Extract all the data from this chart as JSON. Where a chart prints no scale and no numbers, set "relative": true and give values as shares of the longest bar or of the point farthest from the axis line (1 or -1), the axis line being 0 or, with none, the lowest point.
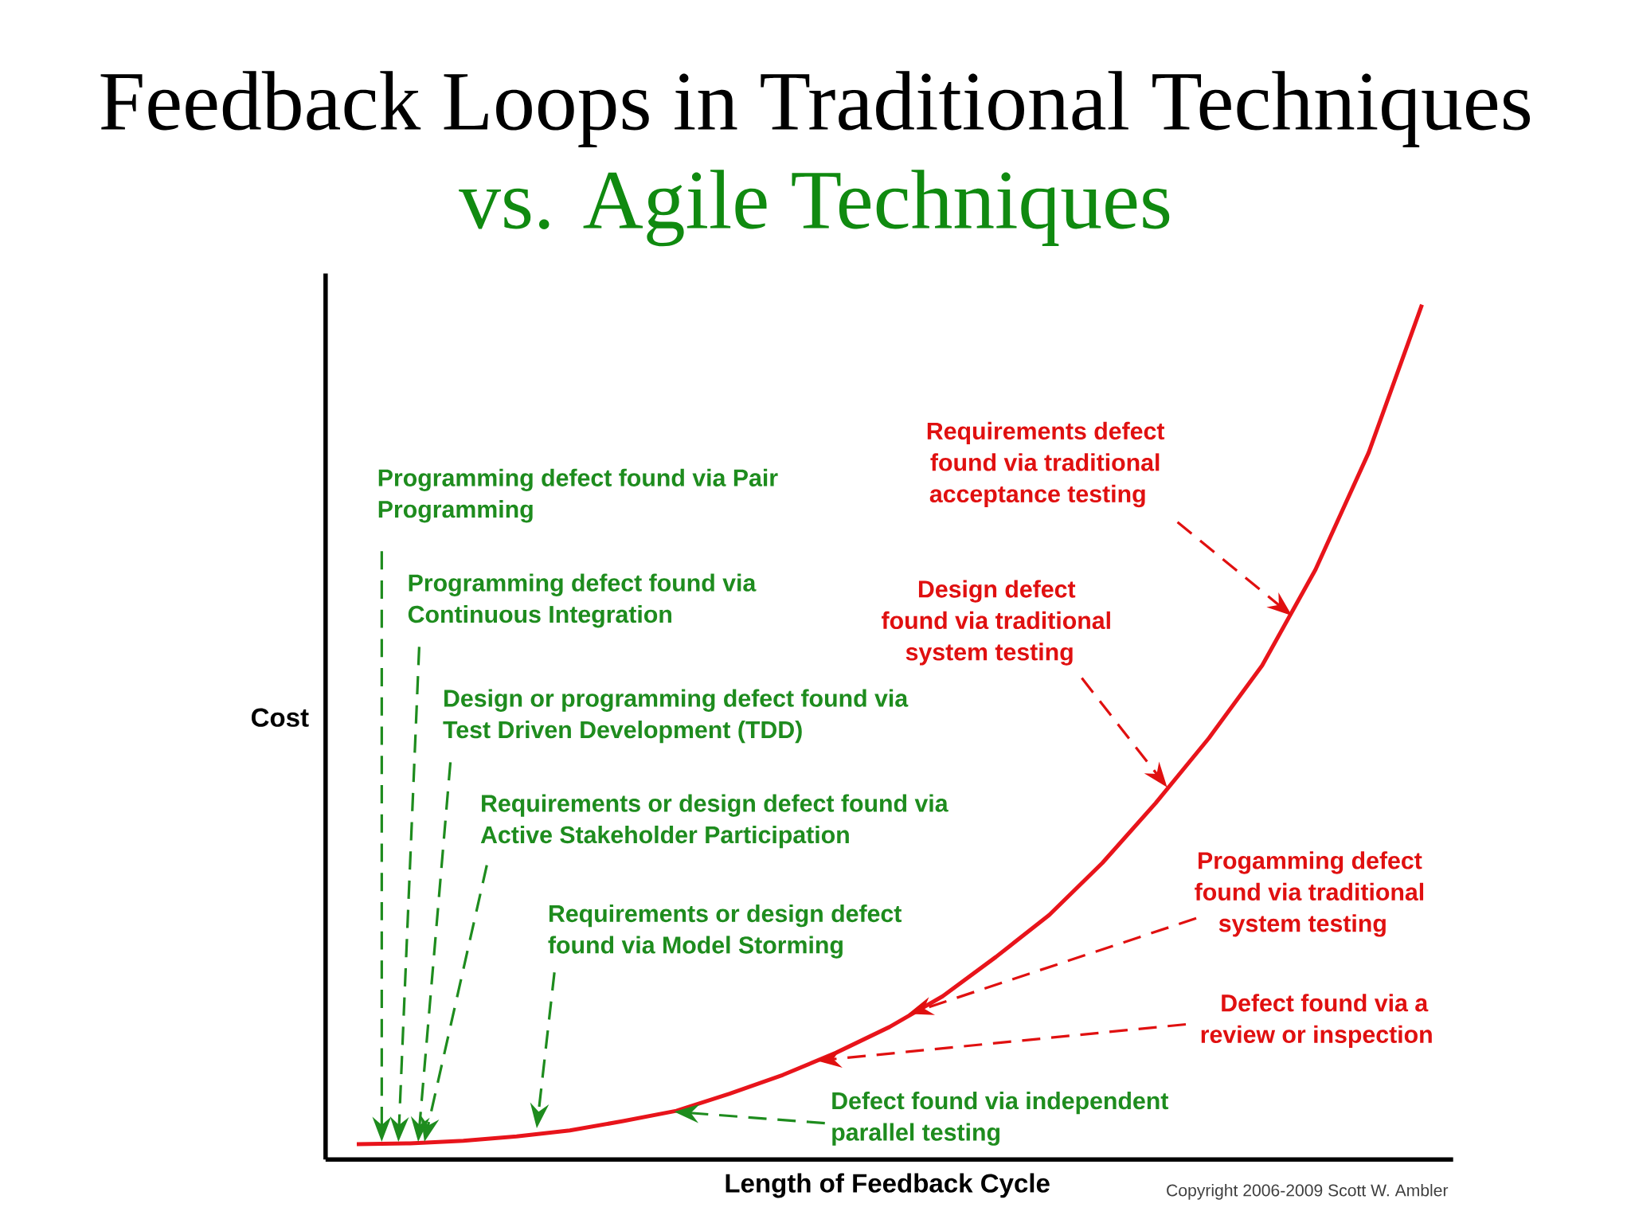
{
  "chart_data": {
    "type": "line",
    "relative": true,
    "title": "Feedback Loops in Traditional Techniques",
    "subtitle": "vs. Agile Techniques",
    "xlabel": "Length of Feedback Cycle",
    "ylabel": "Cost",
    "categories": [
      null,
      null,
      null,
      null,
      null,
      null,
      null,
      null,
      null,
      null,
      null,
      null,
      null,
      null,
      null,
      null,
      null,
      null,
      null,
      null,
      null
    ],
    "series": [
      {
        "color": "#e8141b",
        "values": [
          0.018,
          0.019,
          0.022,
          0.027,
          0.034,
          0.045,
          0.057,
          0.077,
          0.099,
          0.125,
          0.155,
          0.191,
          0.237,
          0.286,
          0.347,
          0.417,
          0.493,
          0.578,
          0.69,
          0.827,
          1.0
        ]
      }
    ],
    "annotations": [
      "Programming defect found via Pair Programming",
      "Programming defect found via Continuous Integration",
      "Design or programming defect found via Test Driven Development (TDD)",
      "Requirements or design defect found via Active Stakeholder Participation",
      "Requirements or design defect found via Model Storming",
      "Defect found via independent parallel testing",
      "Requirements defect found via traditional acceptance testing",
      "Design defect found via traditional system testing",
      "Progamming defect found via traditional system testing",
      "Defect found via a review or inspection",
      "Copyright 2006-2009 Scott W. Ambler"
    ]
  }
}
